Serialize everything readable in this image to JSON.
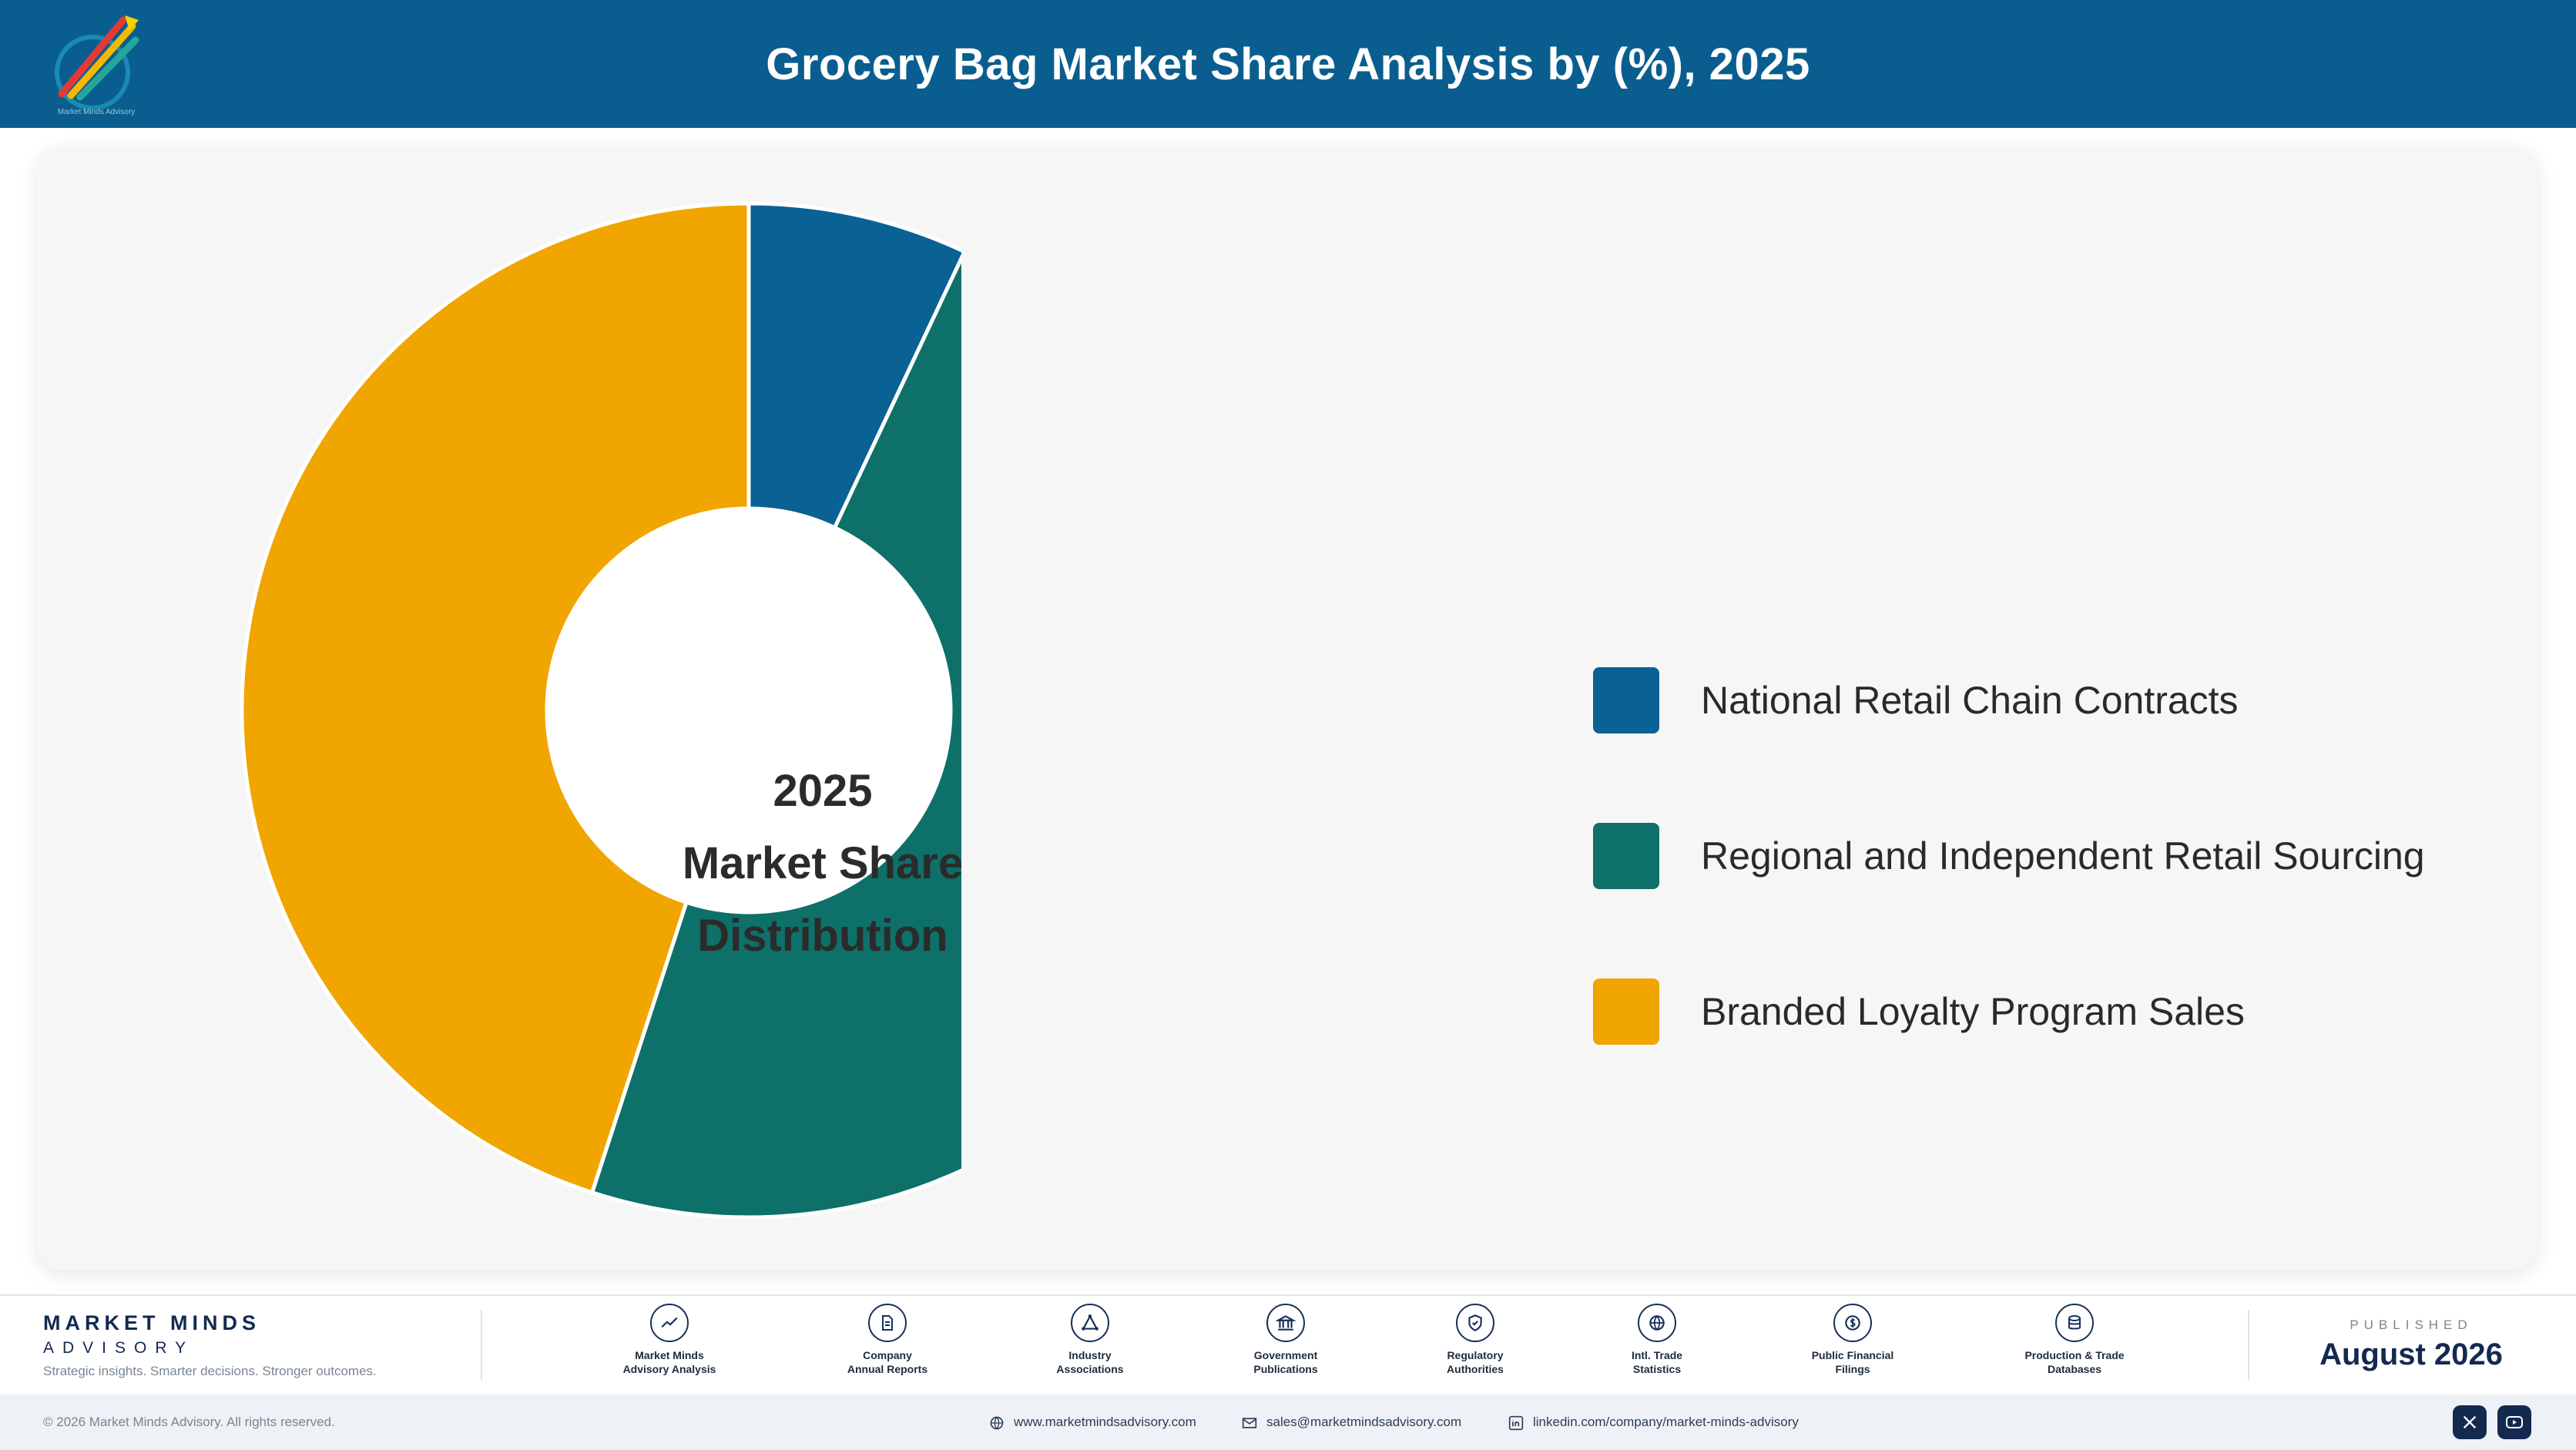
{
  "header": {
    "title": "Grocery Bag Market Share Analysis by (%), 2025",
    "logo_text": "Market Minds Advisory"
  },
  "chart_data": {
    "type": "pie",
    "title": "Grocery Bag Market Share Analysis by (%), 2025",
    "center_label": [
      "2025",
      "Market Share",
      "Distribution"
    ],
    "labels": [
      "National Retail Chain Contracts",
      "Regional and Independent Retail Sourcing",
      "Branded Loyalty Program Sales"
    ],
    "values": [
      7,
      48,
      45
    ],
    "colors": [
      "#0a6194",
      "#0d7069",
      "#f0a500"
    ],
    "legend_position": "right"
  },
  "footer": {
    "brand_name": "MARKET MINDS",
    "brand_sub": "ADVISORY",
    "tagline": "Strategic insights. Smarter decisions. Stronger outcomes.",
    "sources": [
      {
        "line1": "Market Minds",
        "line2": "Advisory Analysis",
        "icon": "trend-line-icon"
      },
      {
        "line1": "Company",
        "line2": "Annual Reports",
        "icon": "document-icon"
      },
      {
        "line1": "Industry",
        "line2": "Associations",
        "icon": "network-icon"
      },
      {
        "line1": "Government",
        "line2": "Publications",
        "icon": "government-building-icon"
      },
      {
        "line1": "Regulatory",
        "line2": "Authorities",
        "icon": "shield-check-icon"
      },
      {
        "line1": "Intl. Trade",
        "line2": "Statistics",
        "icon": "globe-icon"
      },
      {
        "line1": "Public Financial",
        "line2": "Filings",
        "icon": "dollar-coin-icon"
      },
      {
        "line1": "Production & Trade",
        "line2": "Databases",
        "icon": "database-icon"
      }
    ],
    "published_label": "PUBLISHED",
    "published_date": "August 2026",
    "copyright": "© 2026 Market Minds Advisory. All rights reserved.",
    "website": "www.marketmindsadvisory.com",
    "email": "sales@marketmindsadvisory.com",
    "linkedin": "linkedin.com/company/market-minds-advisory"
  }
}
